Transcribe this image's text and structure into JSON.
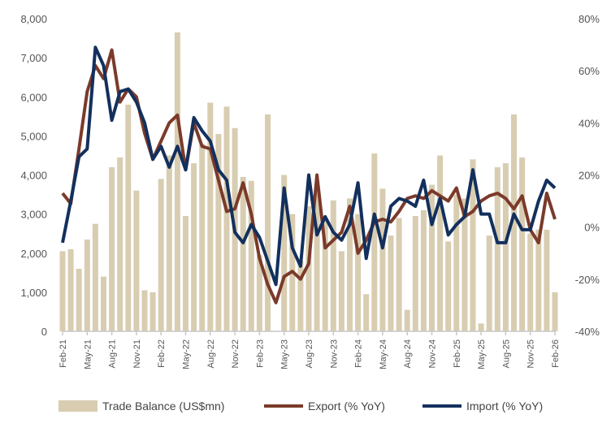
{
  "chart_data": {
    "type": "bar+line",
    "title": "",
    "x": [
      "Feb-21",
      "Mar-21",
      "Apr-21",
      "May-21",
      "Jun-21",
      "Jul-21",
      "Aug-21",
      "Sep-21",
      "Oct-21",
      "Nov-21",
      "Dec-21",
      "Jan-22",
      "Feb-22",
      "Mar-22",
      "Apr-22",
      "May-22",
      "Jun-22",
      "Jul-22",
      "Aug-22",
      "Sep-22",
      "Oct-22",
      "Nov-22",
      "Dec-22",
      "Jan-23",
      "Feb-23",
      "Mar-23",
      "Apr-23",
      "May-23",
      "Jun-23",
      "Jul-23",
      "Aug-23",
      "Sep-23",
      "Oct-23",
      "Nov-23",
      "Dec-23",
      "Jan-24",
      "Feb-24",
      "Mar-24",
      "Apr-24",
      "May-24",
      "Jun-24",
      "Jul-24",
      "Aug-24",
      "Sep-24",
      "Oct-24",
      "Nov-24",
      "Dec-24",
      "Jan-25",
      "Feb-25",
      "Mar-25",
      "Apr-25",
      "May-25",
      "Jun-25",
      "Jul-25",
      "Aug-25",
      "Sep-25",
      "Oct-25",
      "Nov-25",
      "Dec-25",
      "Jan-26",
      "Feb-26"
    ],
    "x_tick_labels": [
      "Feb-21",
      "May-21",
      "Aug-21",
      "Nov-21",
      "Feb-22",
      "May-22",
      "Aug-22",
      "Nov-22",
      "Feb-23",
      "May-23",
      "Aug-23",
      "Nov-23",
      "Feb-24",
      "May-24",
      "Aug-24",
      "Nov-24",
      "Feb-25",
      "May-25",
      "Aug-25",
      "Nov-25",
      "Feb-26"
    ],
    "y_left": {
      "ticks": [
        "0",
        "1,000",
        "2,000",
        "3,000",
        "4,000",
        "5,000",
        "6,000",
        "7,000",
        "8,000"
      ],
      "range": [
        0,
        8000
      ]
    },
    "y_right": {
      "ticks": [
        "-40%",
        "-20%",
        "0%",
        "20%",
        "40%",
        "60%",
        "80%"
      ],
      "range": [
        -40,
        80
      ]
    },
    "series": [
      {
        "name": "Trade Balance (US$mn)",
        "type": "bar",
        "axis": "left",
        "color": "#d8cdb1",
        "values": [
          2050,
          2100,
          1600,
          2350,
          2750,
          1400,
          4200,
          4450,
          5800,
          3600,
          1050,
          1000,
          3900,
          4500,
          7650,
          2950,
          4300,
          4800,
          5850,
          5050,
          5750,
          5200,
          3950,
          3850,
          1950,
          5550,
          0,
          4000,
          3000,
          1800,
          3200,
          3550,
          2900,
          3350,
          2050,
          3400,
          3000,
          950,
          4550,
          3650,
          2450,
          2900,
          550,
          2950,
          3100,
          3750,
          4500,
          2300,
          3500,
          3400,
          4400,
          200,
          2450,
          4200,
          4300,
          5550,
          4450,
          2500,
          2600,
          2600,
          1000
        ]
      },
      {
        "name": "Export (% YoY)",
        "type": "line",
        "axis": "right",
        "color": "#7b3a2a",
        "values": [
          13,
          9,
          30,
          52,
          62,
          57,
          68,
          48,
          53,
          50,
          36,
          26,
          33,
          40,
          43,
          22,
          40,
          31,
          30,
          18,
          6,
          7,
          17,
          5,
          -12,
          -22,
          -29,
          -19,
          -17,
          -20,
          -14,
          20,
          -8,
          -5,
          -2,
          8,
          -10,
          -5,
          2,
          3,
          2,
          6,
          11,
          12,
          11,
          14,
          12,
          10,
          15,
          4,
          6,
          10,
          12,
          13,
          11,
          7,
          12,
          -1,
          -6,
          13,
          3
        ]
      },
      {
        "name": "Import (% YoY)",
        "type": "line",
        "axis": "right",
        "color": "#13305d",
        "values": [
          -6,
          10,
          27,
          30,
          69,
          62,
          41,
          52,
          53,
          48,
          40,
          26,
          31,
          23,
          31,
          22,
          42,
          37,
          33,
          22,
          18,
          -2,
          -6,
          1,
          -4,
          -13,
          -22,
          15,
          -8,
          -15,
          20,
          -3,
          4,
          -2,
          -5,
          1,
          17,
          -12,
          5,
          -8,
          8,
          11,
          10,
          8,
          18,
          1,
          11,
          -3,
          1,
          4,
          22,
          5,
          5,
          -6,
          -6,
          5,
          -1,
          -1,
          10,
          18,
          15
        ]
      }
    ],
    "legend": "bottom",
    "grid": false
  }
}
